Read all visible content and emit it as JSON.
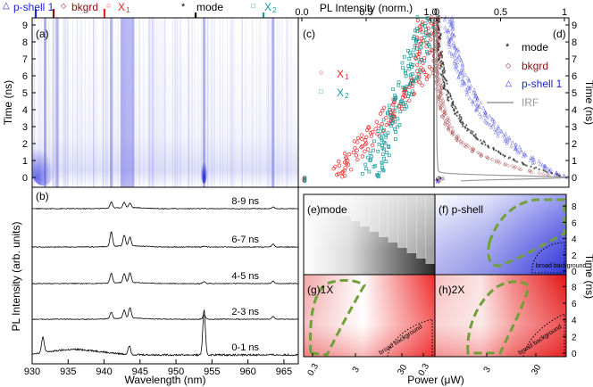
{
  "header": {
    "pshell": "p-shell 1",
    "bkgrd": "bkgrd",
    "x1": "X",
    "x1_sub": "1",
    "mode": "mode",
    "x2": "X",
    "x2_sub": "2"
  },
  "colors": {
    "blue": "#1f24d8",
    "darkred": "#8b1010",
    "red": "#ee2222",
    "teal": "#159a9a",
    "black": "#000000",
    "gray": "#999999",
    "green_dash": "#6fa03a"
  },
  "panels": {
    "a": "(a)",
    "b": "(b)",
    "c": "(c)",
    "d": "(d)",
    "e": "(e)mode",
    "f": "(f) p-shell",
    "g": "(g)1X",
    "h": "(h)2X"
  },
  "axes": {
    "time_label": "Time (ns)",
    "pl_intensity_label": "PL Intensity (arb. units)",
    "wavelength_label": "Wavelength (nm)",
    "pl_norm_label": "PL Intensity (norm.)",
    "power_label": "Power (μW)",
    "time_ticks": [
      "0",
      "1",
      "2",
      "3",
      "4",
      "5",
      "6",
      "7",
      "8",
      "9"
    ],
    "time_ticks_right": [
      "0",
      "2",
      "4",
      "6",
      "8"
    ],
    "wavelength_ticks": [
      "930",
      "935",
      "940",
      "945",
      "950",
      "955",
      "960",
      "965"
    ],
    "norm_ticks": [
      "0.0",
      "0.5",
      "1.0"
    ],
    "norm_ticks_d": [
      "0",
      "0.5",
      "1"
    ],
    "power_ticks": [
      "0.3",
      "3",
      "30"
    ]
  },
  "legend_c": {
    "x1": "X",
    "x1_sub": "1",
    "x2": "X",
    "x2_sub": "2"
  },
  "legend_d": {
    "mode": "mode",
    "bkgrd": "bkgrd",
    "pshell": "p-shell 1",
    "irf": "IRF"
  },
  "annotations": {
    "broad_background": "broad background"
  },
  "chart_data": {
    "type": "line",
    "title": "",
    "xlabel": "Wavelength (nm)",
    "ylabel": "PL Intensity (arb. units)",
    "xlim": [
      930,
      967
    ],
    "categories": [
      "0-1 ns",
      "2-3 ns",
      "4-5 ns",
      "6-7 ns",
      "8-9 ns"
    ],
    "markers_nm": {
      "p-shell 1": 931.8,
      "bkgrd": 933.5,
      "X1": 941.0,
      "mode": 953.9,
      "X2": 963.5
    },
    "series": [
      {
        "name": "0-1 ns",
        "peak_nm": [
          931.5,
          943.5,
          953.9
        ],
        "peak_heights": [
          0.35,
          0.2,
          1.0
        ]
      },
      {
        "name": "2-3 ns",
        "peak_nm": [
          941.0,
          942.8,
          943.6,
          953.9,
          963.5
        ],
        "peak_heights": [
          0.35,
          0.45,
          0.6,
          0.25,
          0.15
        ]
      },
      {
        "name": "4-5 ns",
        "peak_nm": [
          941.0,
          942.8,
          943.6,
          953.9,
          963.5
        ],
        "peak_heights": [
          0.55,
          0.5,
          0.55,
          0.12,
          0.15
        ]
      },
      {
        "name": "6-7 ns",
        "peak_nm": [
          941.0,
          942.8,
          943.6,
          953.9,
          963.5
        ],
        "peak_heights": [
          0.75,
          0.55,
          0.45,
          0.05,
          0.15
        ]
      },
      {
        "name": "8-9 ns",
        "peak_nm": [
          941.0,
          942.8,
          943.6,
          963.5
        ],
        "peak_heights": [
          0.35,
          0.3,
          0.25,
          0.08
        ]
      }
    ]
  }
}
